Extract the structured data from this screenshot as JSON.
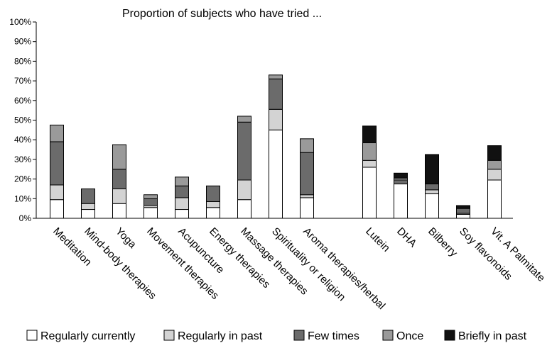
{
  "chart_data": {
    "type": "bar",
    "stacked": true,
    "title": "Proportion of subjects who have tried ...",
    "xlabel": "",
    "ylabel": "",
    "ylim": [
      0,
      100
    ],
    "yticks": [
      "0%",
      "10%",
      "20%",
      "30%",
      "40%",
      "50%",
      "60%",
      "70%",
      "80%",
      "90%",
      "100%"
    ],
    "categories": [
      "Meditation",
      "Mind-body therapies",
      "Yoga",
      "Movement therapies",
      "Acupuncture",
      "Energy therapies",
      "Massage therapies",
      "Spirituality or religion",
      "Aroma therapies/herbal",
      "Lutein",
      "DHA",
      "Bilberry",
      "Soy flavonoids",
      "Vit. A Palmitate"
    ],
    "group_gap_after": "Aroma therapies/herbal",
    "grid": false,
    "legend_position": "bottom",
    "series": [
      {
        "name": "Regularly currently",
        "color": "#ffffff",
        "values": [
          9.5,
          4.5,
          7.5,
          5.5,
          4.5,
          5.5,
          9.5,
          45,
          10.5,
          26,
          17.5,
          12.5,
          2,
          19.5
        ]
      },
      {
        "name": "Regularly in past",
        "color": "#d3d3d3",
        "values": [
          7.5,
          3,
          7.5,
          1,
          6,
          3,
          10,
          10.5,
          1.5,
          3.5,
          0,
          2,
          0.5,
          5.5
        ]
      },
      {
        "name": "Few times",
        "color": "#6b6b6b",
        "values": [
          22,
          7.5,
          10,
          3.5,
          6,
          8,
          29.5,
          15.5,
          21.5,
          0,
          2,
          3,
          2.5,
          0
        ]
      },
      {
        "name": "Once",
        "color": "#9a9a9a",
        "values": [
          8.5,
          0,
          12.5,
          2,
          4.5,
          0,
          3,
          2,
          7,
          9,
          1,
          0,
          0,
          4.5
        ]
      },
      {
        "name": "Briefly in past",
        "color": "#111111",
        "values": [
          0,
          0,
          0,
          0,
          0,
          0,
          0,
          0,
          0,
          8.5,
          2.5,
          15,
          1.5,
          7.5
        ]
      }
    ]
  }
}
